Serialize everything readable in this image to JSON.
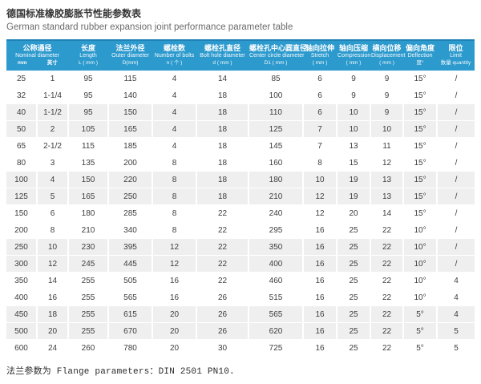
{
  "header": {
    "title_cn": "德国标准橡胶膨胀节性能参数表",
    "title_en": "German standard rubber expansion joint performance parameter table"
  },
  "footer": {
    "note": "法兰参数为 Flange parameters：DIN 2501 PN10."
  },
  "colors": {
    "header_bg": "#2d9ace",
    "header_border_top": "#2083b6",
    "row_shade": "#efefef",
    "cell_text": "#3d3d3d"
  },
  "table": {
    "columns": [
      {
        "id": "nominal-diameter",
        "cn": "公称通径",
        "en": "Nominal diameter",
        "sub": [
          "mm",
          "英寸"
        ],
        "span": 2
      },
      {
        "id": "length",
        "cn": "长度",
        "en": "Length",
        "unit": "L ( mm )"
      },
      {
        "id": "outer-diameter",
        "cn": "法兰外径",
        "en": "Outer diameter",
        "unit": "D(mm)"
      },
      {
        "id": "number-of-bolts",
        "cn": "螺栓数",
        "en": "Number of bolts",
        "unit": "n ( 个 )"
      },
      {
        "id": "bolt-hole-diameter",
        "cn": "螺栓孔直径",
        "en": "Bolt hole diameter",
        "unit": "d ( mm )"
      },
      {
        "id": "center-circle-diameter",
        "cn": "螺栓孔中心圆直径",
        "en": "Center circle diameter",
        "unit": "D1 ( mm )"
      },
      {
        "id": "stretch",
        "cn": "轴向拉伸",
        "en": "Stretch",
        "unit": "( mm )"
      },
      {
        "id": "compression",
        "cn": "轴向压缩",
        "en": "Compression",
        "unit": "( mm )"
      },
      {
        "id": "displacement",
        "cn": "横向位移",
        "en": "Displacement",
        "unit": "( mm )"
      },
      {
        "id": "deflection",
        "cn": "偏向角度",
        "en": "Deflection",
        "unit": "度°"
      },
      {
        "id": "limit",
        "cn": "限位",
        "en": "Limit",
        "unit": "数量 quantity"
      }
    ],
    "rows": [
      [
        "25",
        "1",
        "95",
        "115",
        "4",
        "14",
        "85",
        "6",
        "9",
        "9",
        "15°",
        "/"
      ],
      [
        "32",
        "1-1/4",
        "95",
        "140",
        "4",
        "18",
        "100",
        "6",
        "9",
        "9",
        "15°",
        "/"
      ],
      [
        "40",
        "1-1/2",
        "95",
        "150",
        "4",
        "18",
        "110",
        "6",
        "10",
        "9",
        "15°",
        "/"
      ],
      [
        "50",
        "2",
        "105",
        "165",
        "4",
        "18",
        "125",
        "7",
        "10",
        "10",
        "15°",
        "/"
      ],
      [
        "65",
        "2-1/2",
        "115",
        "185",
        "4",
        "18",
        "145",
        "7",
        "13",
        "11",
        "15°",
        "/"
      ],
      [
        "80",
        "3",
        "135",
        "200",
        "8",
        "18",
        "160",
        "8",
        "15",
        "12",
        "15°",
        "/"
      ],
      [
        "100",
        "4",
        "150",
        "220",
        "8",
        "18",
        "180",
        "10",
        "19",
        "13",
        "15°",
        "/"
      ],
      [
        "125",
        "5",
        "165",
        "250",
        "8",
        "18",
        "210",
        "12",
        "19",
        "13",
        "15°",
        "/"
      ],
      [
        "150",
        "6",
        "180",
        "285",
        "8",
        "22",
        "240",
        "12",
        "20",
        "14",
        "15°",
        "/"
      ],
      [
        "200",
        "8",
        "210",
        "340",
        "8",
        "22",
        "295",
        "16",
        "25",
        "22",
        "10°",
        "/"
      ],
      [
        "250",
        "10",
        "230",
        "395",
        "12",
        "22",
        "350",
        "16",
        "25",
        "22",
        "10°",
        "/"
      ],
      [
        "300",
        "12",
        "245",
        "445",
        "12",
        "22",
        "400",
        "16",
        "25",
        "22",
        "10°",
        "/"
      ],
      [
        "350",
        "14",
        "255",
        "505",
        "16",
        "22",
        "460",
        "16",
        "25",
        "22",
        "10°",
        "4"
      ],
      [
        "400",
        "16",
        "255",
        "565",
        "16",
        "26",
        "515",
        "16",
        "25",
        "22",
        "10°",
        "4"
      ],
      [
        "450",
        "18",
        "255",
        "615",
        "20",
        "26",
        "565",
        "16",
        "25",
        "22",
        "5°",
        "4"
      ],
      [
        "500",
        "20",
        "255",
        "670",
        "20",
        "26",
        "620",
        "16",
        "25",
        "22",
        "5°",
        "5"
      ],
      [
        "600",
        "24",
        "260",
        "780",
        "20",
        "30",
        "725",
        "16",
        "25",
        "22",
        "5°",
        "5"
      ]
    ]
  }
}
